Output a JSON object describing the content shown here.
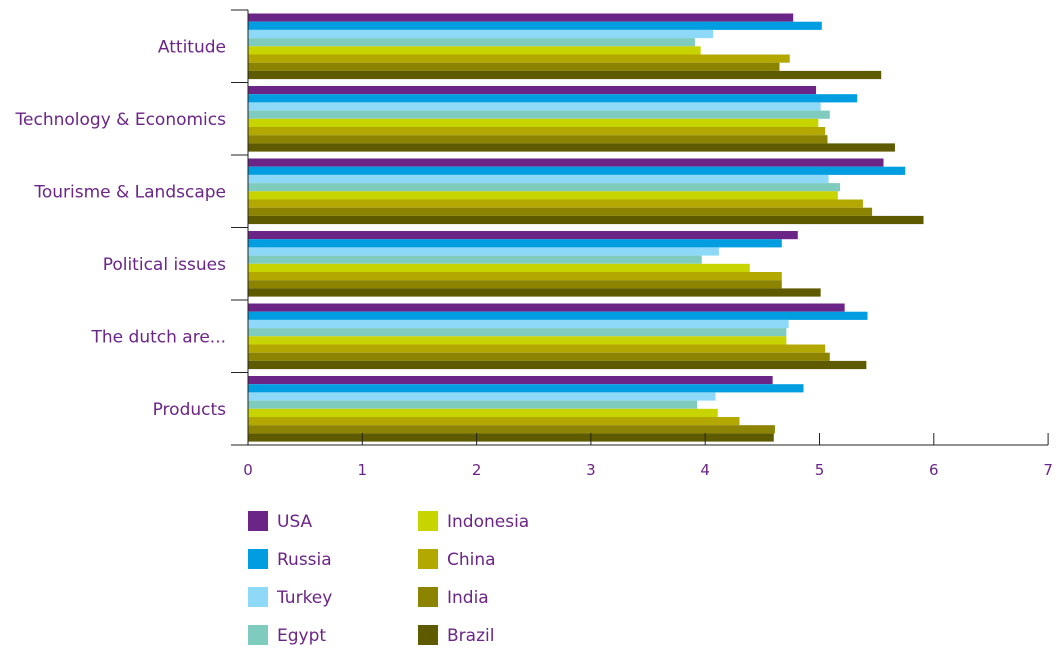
{
  "chart_data": {
    "type": "bar",
    "orientation": "horizontal",
    "categories": [
      "Attitude",
      "Technology & Economics",
      "Tourisme & Landscape",
      "Political issues",
      "The dutch are...",
      "Products"
    ],
    "xlim": [
      0,
      7
    ],
    "x_ticks": [
      "0",
      "1",
      "2",
      "3",
      "4",
      "5",
      "6",
      "7"
    ],
    "grid": false,
    "legend_position": "bottom-left",
    "series": [
      {
        "name": "USA",
        "color": "#6b2587",
        "values": [
          4.77,
          4.97,
          5.56,
          4.81,
          5.22,
          4.59
        ]
      },
      {
        "name": "Russia",
        "color": "#009ee0",
        "values": [
          5.02,
          5.33,
          5.75,
          4.67,
          5.42,
          4.86
        ]
      },
      {
        "name": "Turkey",
        "color": "#8ed8f8",
        "values": [
          4.07,
          5.01,
          5.08,
          4.12,
          4.73,
          4.09
        ]
      },
      {
        "name": "Egypt",
        "color": "#7fcbbe",
        "values": [
          3.91,
          5.09,
          5.18,
          3.97,
          4.71,
          3.93
        ]
      },
      {
        "name": "Indonesia",
        "color": "#c8d400",
        "values": [
          3.96,
          4.99,
          5.16,
          4.39,
          4.71,
          4.11
        ]
      },
      {
        "name": "China",
        "color": "#b3a800",
        "values": [
          4.74,
          5.05,
          5.38,
          4.67,
          5.05,
          4.3
        ]
      },
      {
        "name": "India",
        "color": "#8c8400",
        "values": [
          4.65,
          5.07,
          5.46,
          4.67,
          5.09,
          4.61
        ]
      },
      {
        "name": "Brazil",
        "color": "#5e5a00",
        "values": [
          5.54,
          5.66,
          5.91,
          5.01,
          5.41,
          4.6
        ]
      }
    ]
  }
}
